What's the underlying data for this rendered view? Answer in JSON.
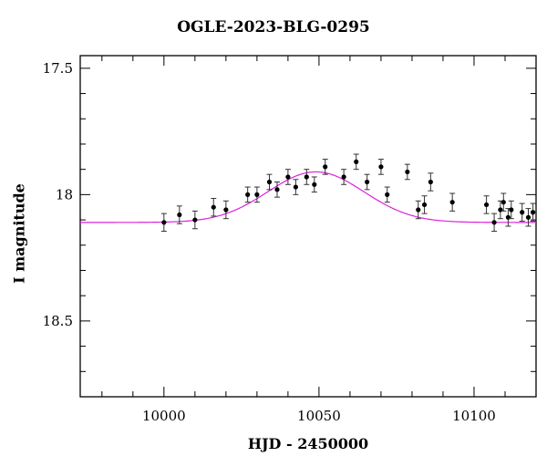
{
  "chart_data": {
    "type": "scatter",
    "title": "OGLE-2023-BLG-0295",
    "xlabel": "HJD - 2450000",
    "ylabel": "I magnitude",
    "xlim": [
      9973,
      10120
    ],
    "ylim": [
      18.8,
      17.45
    ],
    "y_inverted": true,
    "x_ticks": [
      10000,
      10050,
      10100
    ],
    "x_tick_labels": [
      "10000",
      "10050",
      "10100"
    ],
    "y_ticks": [
      17.5,
      18,
      18.5
    ],
    "y_tick_labels": [
      "17.5",
      "18",
      "18.5"
    ],
    "grid": false,
    "colors": {
      "points": "#000000",
      "model": "#dd22dd"
    },
    "series": [
      {
        "type": "scatter_with_errorbars",
        "points": [
          {
            "x": 10000.0,
            "y": 18.11,
            "err": 0.035
          },
          {
            "x": 10005.0,
            "y": 18.08,
            "err": 0.035
          },
          {
            "x": 10010.0,
            "y": 18.1,
            "err": 0.035
          },
          {
            "x": 10016.0,
            "y": 18.05,
            "err": 0.035
          },
          {
            "x": 10020.0,
            "y": 18.06,
            "err": 0.035
          },
          {
            "x": 10027.0,
            "y": 18.0,
            "err": 0.03
          },
          {
            "x": 10030.0,
            "y": 18.0,
            "err": 0.03
          },
          {
            "x": 10034.0,
            "y": 17.95,
            "err": 0.03
          },
          {
            "x": 10036.5,
            "y": 17.98,
            "err": 0.03
          },
          {
            "x": 10040.0,
            "y": 17.93,
            "err": 0.03
          },
          {
            "x": 10042.5,
            "y": 17.97,
            "err": 0.03
          },
          {
            "x": 10046.0,
            "y": 17.93,
            "err": 0.03
          },
          {
            "x": 10048.5,
            "y": 17.96,
            "err": 0.03
          },
          {
            "x": 10052.0,
            "y": 17.89,
            "err": 0.03
          },
          {
            "x": 10058.0,
            "y": 17.93,
            "err": 0.03
          },
          {
            "x": 10062.0,
            "y": 17.87,
            "err": 0.03
          },
          {
            "x": 10065.5,
            "y": 17.95,
            "err": 0.03
          },
          {
            "x": 10070.0,
            "y": 17.89,
            "err": 0.03
          },
          {
            "x": 10072.0,
            "y": 18.0,
            "err": 0.03
          },
          {
            "x": 10078.5,
            "y": 17.91,
            "err": 0.03
          },
          {
            "x": 10082.0,
            "y": 18.06,
            "err": 0.035
          },
          {
            "x": 10084.0,
            "y": 18.04,
            "err": 0.035
          },
          {
            "x": 10086.0,
            "y": 17.95,
            "err": 0.035
          },
          {
            "x": 10093.0,
            "y": 18.03,
            "err": 0.035
          },
          {
            "x": 10104.0,
            "y": 18.04,
            "err": 0.035
          },
          {
            "x": 10106.5,
            "y": 18.11,
            "err": 0.035
          },
          {
            "x": 10108.5,
            "y": 18.06,
            "err": 0.035
          },
          {
            "x": 10109.5,
            "y": 18.03,
            "err": 0.035
          },
          {
            "x": 10111.0,
            "y": 18.09,
            "err": 0.035
          },
          {
            "x": 10112.0,
            "y": 18.06,
            "err": 0.035
          },
          {
            "x": 10115.5,
            "y": 18.07,
            "err": 0.035
          },
          {
            "x": 10117.5,
            "y": 18.09,
            "err": 0.035
          },
          {
            "x": 10119.0,
            "y": 18.07,
            "err": 0.035
          }
        ]
      },
      {
        "type": "line",
        "model": "gaussian",
        "baseline": 18.11,
        "peak_x": 10049,
        "peak_y": 17.91,
        "sigma": 15.5,
        "x_range": [
          9973,
          10120
        ]
      }
    ]
  }
}
